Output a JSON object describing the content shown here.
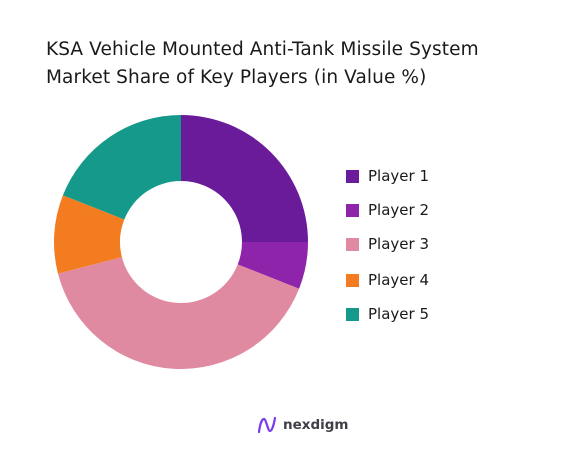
{
  "title_lines": [
    "KSA Vehicle Mounted Anti-Tank Missile System",
    "Market Share of Key Players (in Value %)"
  ],
  "brand": {
    "name": "nexdigm",
    "icon": "nexdigm-logo-icon",
    "color": "#7c3aed"
  },
  "chart_data": {
    "type": "pie",
    "subtype": "donut",
    "title": "KSA Vehicle Mounted Anti-Tank Missile System Market Share of Key Players (in Value %)",
    "categories": [
      "Player 1",
      "Player 2",
      "Player 3",
      "Player 4",
      "Player 5"
    ],
    "values": [
      25,
      6,
      40,
      10,
      19
    ],
    "colors": [
      "#6a1b9a",
      "#8e24aa",
      "#e08aa1",
      "#f47c20",
      "#14998a"
    ],
    "legend_position": "right"
  }
}
